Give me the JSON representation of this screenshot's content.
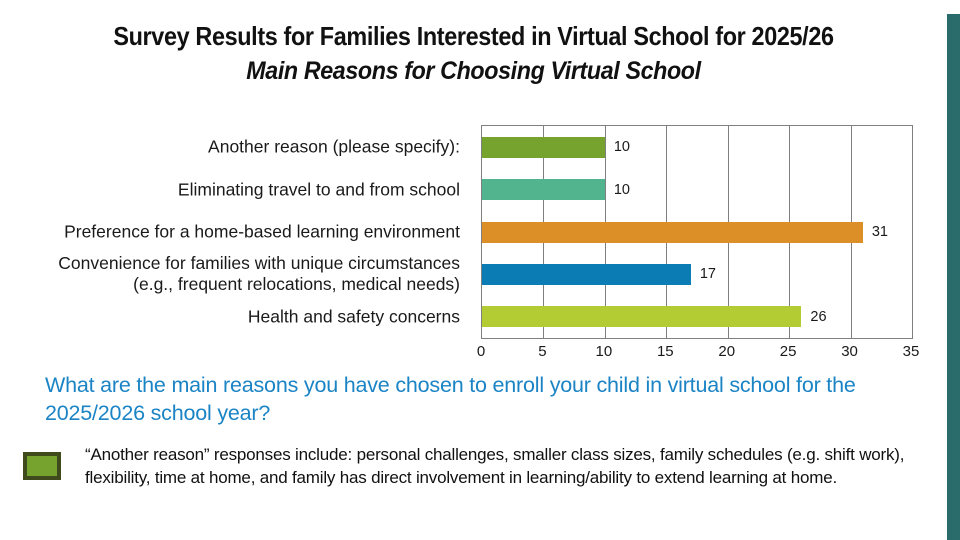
{
  "title": {
    "line1": "Survey Results for Families Interested in Virtual School for 2025/26",
    "line2": "Main Reasons for Choosing Virtual School"
  },
  "chart_data": {
    "type": "bar",
    "orientation": "horizontal",
    "title": "Main Reasons for Choosing Virtual School",
    "categories": [
      "Another reason (please specify):",
      "Eliminating travel to and from school",
      "Preference for a home-based learning environment",
      "Convenience for families with unique circumstances (e.g., frequent relocations, medical needs)",
      "Health and safety concerns"
    ],
    "category_label_lines": [
      [
        "Another reason (please specify):"
      ],
      [
        "Eliminating travel to and from school"
      ],
      [
        "Preference for a home-based learning environment"
      ],
      [
        "Convenience for families with unique circumstances",
        "(e.g., frequent relocations, medical needs)"
      ],
      [
        "Health and safety concerns"
      ]
    ],
    "values": [
      10,
      10,
      31,
      17,
      26
    ],
    "data_labels": [
      "10",
      "10",
      "31",
      "17",
      "26"
    ],
    "bar_colors": [
      "#76a32d",
      "#52b48e",
      "#dd8f27",
      "#0c7cb5",
      "#b3cc33"
    ],
    "x_ticks": [
      0,
      5,
      10,
      15,
      20,
      25,
      30,
      35
    ],
    "x_tick_labels": [
      "0",
      "5",
      "10",
      "15",
      "20",
      "25",
      "30",
      "35"
    ],
    "xlim": [
      0,
      35
    ],
    "grid": true,
    "gridline_color": "#7f7f7f",
    "legend_position": "none"
  },
  "question": {
    "text": "What are the main reasons you have chosen to enroll your child in virtual school for the 2025/2026 school year?",
    "color": "#1b84c5"
  },
  "note": {
    "text": "“Another reason” responses include: personal challenges, smaller class sizes, family schedules (e.g. shift work), flexibility, time at home, and family has direct involvement in learning/ability to extend learning at home.",
    "swatch_fill": "#76a32d",
    "swatch_border": "#3f4b1c"
  },
  "accent_bar": {
    "color": "#2a6b6c"
  }
}
